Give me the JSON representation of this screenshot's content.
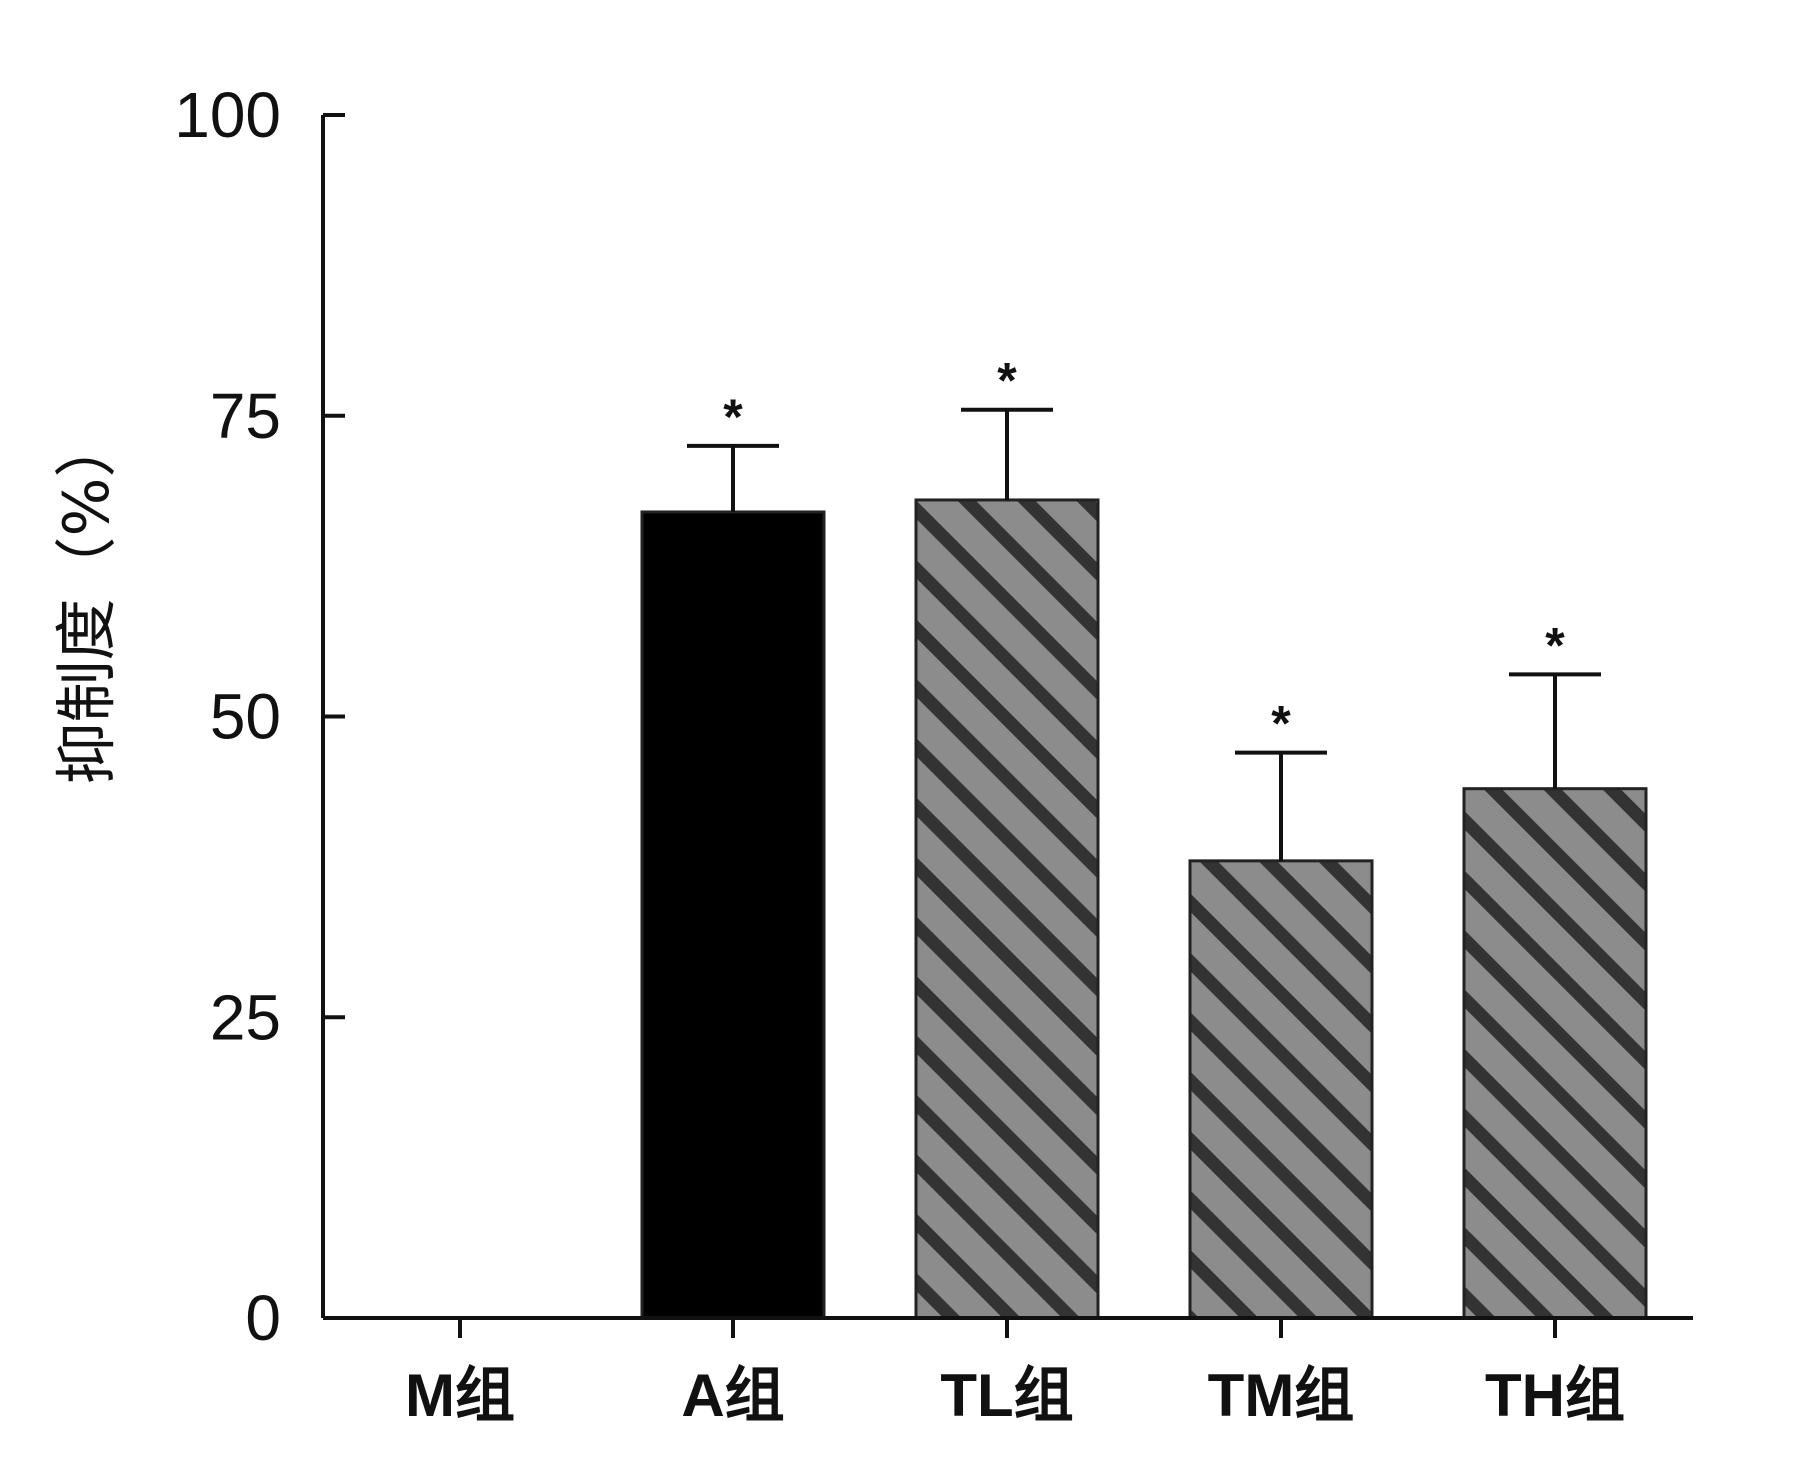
{
  "chart_data": {
    "type": "bar",
    "title": "",
    "xlabel": "",
    "ylabel": "抑制度（%）",
    "ylim": [
      0,
      100
    ],
    "yticks": [
      "0",
      "25",
      "50",
      "75",
      "100"
    ],
    "categories": [
      "M组",
      "A组",
      "TL组",
      "TM组",
      "TH组"
    ],
    "values": [
      0,
      67,
      68,
      38,
      44
    ],
    "errors": [
      0,
      5.5,
      7.5,
      9,
      9.5
    ],
    "significance": [
      "",
      "*",
      "*",
      "*",
      "*"
    ],
    "fills": [
      "none",
      "solid-black",
      "hatched-gray",
      "hatched-gray",
      "hatched-gray"
    ],
    "colors": {
      "solid": "#000000",
      "hatch_base": "#8c8c8c",
      "hatch_stripe": "#333333",
      "axis": "#111111"
    },
    "grid": false,
    "legend": "none"
  }
}
